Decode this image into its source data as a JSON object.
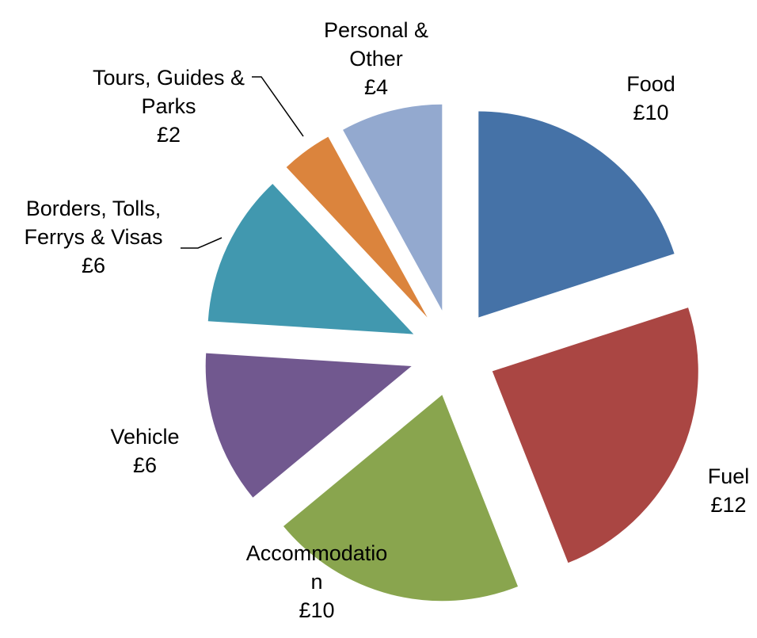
{
  "chart_data": {
    "type": "pie",
    "categories": [
      "Food",
      "Fuel",
      "Accommodation",
      "Vehicle",
      "Borders, Tolls, Ferrys & Visas",
      "Tours, Guides & Parks",
      "Personal & Other"
    ],
    "values": [
      10,
      12,
      10,
      6,
      6,
      2,
      4
    ],
    "value_labels": [
      "£10",
      "£12",
      "£10",
      "£6",
      "£6",
      "£2",
      "£4"
    ],
    "colors": [
      "#4572a7",
      "#aa4643",
      "#89a54e",
      "#71588f",
      "#4198af",
      "#db843d",
      "#93a9cf"
    ],
    "exploded": true
  }
}
